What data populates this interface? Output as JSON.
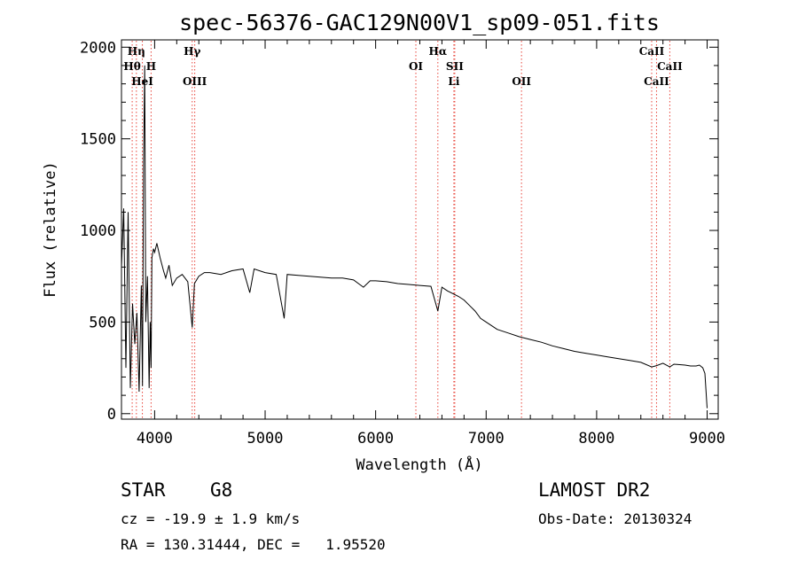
{
  "chart_data": {
    "type": "line",
    "title": "spec-56376-GAC129N00V1_sp09-051.fits",
    "xlabel": "Wavelength (Å)",
    "ylabel": "Flux (relative)",
    "xlim": [
      3700,
      9100
    ],
    "ylim": [
      -30,
      2040
    ],
    "xticks": [
      4000,
      5000,
      6000,
      7000,
      8000,
      9000
    ],
    "yticks": [
      0,
      500,
      1000,
      1500,
      2000
    ],
    "grid": false,
    "series": [
      {
        "x": [
          3700,
          3720,
          3740,
          3760,
          3780,
          3800,
          3820,
          3840,
          3860,
          3880,
          3890,
          3900,
          3910,
          3920,
          3935,
          3950,
          3960,
          3968,
          3975,
          3990,
          4000,
          4020,
          4050,
          4080,
          4100,
          4130,
          4160,
          4200,
          4250,
          4300,
          4340,
          4360,
          4400,
          4450,
          4500,
          4600,
          4700,
          4800,
          4861,
          4900,
          5000,
          5100,
          5172,
          5200,
          5300,
          5400,
          5500,
          5600,
          5700,
          5800,
          5890,
          5950,
          6000,
          6100,
          6200,
          6300,
          6400,
          6500,
          6563,
          6600,
          6650,
          6700,
          6750,
          6800,
          6850,
          6900,
          6950,
          7000,
          7050,
          7100,
          7200,
          7300,
          7400,
          7500,
          7600,
          7700,
          7800,
          7900,
          8000,
          8100,
          8200,
          8300,
          8400,
          8498,
          8542,
          8600,
          8662,
          8700,
          8800,
          8850,
          8900,
          8930,
          8960,
          8980,
          9000
        ],
        "y": [
          800,
          1120,
          250,
          1100,
          140,
          600,
          380,
          550,
          120,
          700,
          150,
          1360,
          1900,
          500,
          750,
          140,
          500,
          250,
          850,
          900,
          880,
          930,
          850,
          780,
          740,
          810,
          700,
          740,
          760,
          720,
          470,
          710,
          750,
          770,
          770,
          760,
          780,
          790,
          660,
          790,
          770,
          760,
          520,
          760,
          755,
          750,
          745,
          740,
          740,
          730,
          690,
          725,
          725,
          720,
          710,
          705,
          700,
          695,
          560,
          690,
          670,
          655,
          640,
          620,
          590,
          560,
          520,
          500,
          480,
          460,
          440,
          420,
          405,
          390,
          370,
          355,
          340,
          330,
          320,
          310,
          300,
          290,
          280,
          255,
          262,
          275,
          255,
          270,
          265,
          260,
          260,
          265,
          250,
          220,
          30
        ]
      }
    ],
    "line_markers": [
      {
        "label": "Hη",
        "x": 3835,
        "row": 0
      },
      {
        "label": "Hθ",
        "x": 3797,
        "row": 1
      },
      {
        "label": "H",
        "x": 3968,
        "row": 1
      },
      {
        "label": "HeI",
        "x": 3889,
        "row": 2
      },
      {
        "label": "Hγ",
        "x": 4340,
        "row": 0
      },
      {
        "label": "OIII",
        "x": 4363,
        "row": 2
      },
      {
        "label": "OI",
        "x": 6364,
        "row": 1
      },
      {
        "label": "Hα",
        "x": 6563,
        "row": 0
      },
      {
        "label": "SII",
        "x": 6716,
        "row": 1
      },
      {
        "label": "Li",
        "x": 6708,
        "row": 2
      },
      {
        "label": "OII",
        "x": 7320,
        "row": 2
      },
      {
        "label": "CaII",
        "x": 8498,
        "row": 0
      },
      {
        "label": "CaII",
        "x": 8662,
        "row": 1
      },
      {
        "label": "CaII",
        "x": 8542,
        "row": 2
      }
    ]
  },
  "info": {
    "object_class": "STAR",
    "subclass": "G8",
    "survey": "LAMOST DR2",
    "redshift": "cz = -19.9 ± 1.9 km/s",
    "obs_date": "Obs-Date: 20130324",
    "coords": "RA = 130.31444, DEC =   1.95520"
  },
  "colors": {
    "spectrum": "#000000",
    "marker_line": "#e8443a",
    "axes": "#000000"
  }
}
